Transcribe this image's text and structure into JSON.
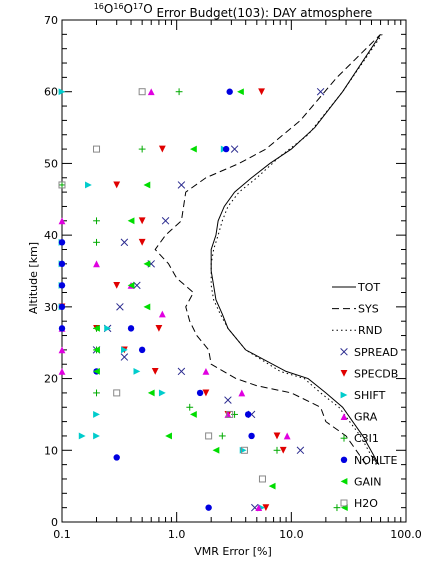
{
  "chart_data": {
    "type": "scatter",
    "title": {
      "iso_a": "16",
      "o_a": "O",
      "iso_b": "16",
      "o_b": "O",
      "iso_c": "17",
      "o_c": "O",
      "rest": " Error Budget(103): DAY atmosphere"
    },
    "xlabel": "VMR Error [%]",
    "ylabel": "Altitude [km]",
    "x_scale": "log",
    "xlim": [
      0.1,
      100
    ],
    "ylim": [
      0,
      70
    ],
    "x_ticks": [
      "0.1",
      "1.0",
      "10.0",
      "100.0"
    ],
    "y_ticks": [
      "0",
      "10",
      "20",
      "30",
      "40",
      "50",
      "60",
      "70"
    ],
    "legend_position": "right",
    "series": [
      {
        "name": "TOT",
        "kind": "line",
        "dash": "",
        "color": "#000000",
        "x": [
          58,
          42,
          28,
          20,
          14,
          9,
          4,
          2.8,
          2.5,
          2.2,
          2.1,
          2.0,
          2.0,
          2.2,
          2.3,
          2.6,
          3.2,
          4.5,
          6.5,
          10,
          16,
          28,
          60
        ],
        "y": [
          8,
          12,
          16,
          18,
          20,
          21,
          24,
          27,
          29,
          31,
          33,
          35,
          38,
          40,
          42,
          44,
          46,
          48,
          50,
          52,
          55,
          60,
          68
        ]
      },
      {
        "name": "SYS",
        "kind": "line",
        "dash": "7,4",
        "color": "#000000",
        "x": [
          45,
          30,
          20,
          18,
          10,
          5,
          3.3,
          2.0,
          1.9,
          1.5,
          1.3,
          1.2,
          1.4,
          1.0,
          0.85,
          0.65,
          0.8,
          1.1,
          1.2,
          1.8,
          3.5,
          6,
          12,
          25,
          60
        ],
        "y": [
          8,
          12,
          14,
          16,
          18,
          19,
          20,
          22,
          24,
          26,
          28,
          30,
          32,
          34,
          36,
          38,
          40,
          42,
          46,
          48,
          50,
          52,
          56,
          62,
          68
        ]
      },
      {
        "name": "RND",
        "kind": "line",
        "dash": "1.5,3",
        "color": "#000000",
        "x": [
          55,
          40,
          26,
          18,
          13,
          8,
          4,
          2.8,
          2.4,
          2.1,
          2.0,
          2.0,
          2.1,
          2.3,
          2.5,
          2.8,
          3.5,
          5,
          8,
          14,
          28,
          62
        ],
        "y": [
          8,
          12,
          16,
          18,
          20,
          21,
          24,
          27,
          29,
          31,
          33,
          36,
          38,
          40,
          42,
          44,
          46,
          48,
          51,
          54,
          60,
          68
        ]
      },
      {
        "name": "SPREAD",
        "kind": "marker",
        "marker": "x",
        "color": "#2b2b8f",
        "x": [
          18,
          3.2,
          1.1,
          0.8,
          0.6,
          0.35,
          0.45,
          0.32,
          0.25,
          0.2,
          0.35,
          1.1,
          2.8,
          4.5,
          12,
          4.8
        ],
        "y": [
          60,
          52,
          47,
          42,
          36,
          39,
          33,
          30,
          27,
          24,
          23,
          21,
          17,
          15,
          10,
          2
        ]
      },
      {
        "name": "SPECDB",
        "kind": "marker",
        "marker": "tri_down",
        "color": "#e00000",
        "x": [
          5.5,
          0.75,
          0.3,
          0.5,
          0.5,
          0.3,
          0.1,
          0.7,
          0.2,
          0.35,
          0.65,
          1.8,
          2.8,
          7.5,
          8.5,
          6
        ],
        "y": [
          60,
          52,
          47,
          42,
          39,
          33,
          30,
          27,
          27,
          24,
          21,
          18,
          15,
          12,
          10,
          2
        ]
      },
      {
        "name": "SHIFT",
        "kind": "marker",
        "marker": "tri_right",
        "color": "#00cccc",
        "x": [
          0.1,
          2.6,
          0.17,
          0.1,
          0.1,
          0.1,
          0.1,
          0.25,
          0.35,
          0.45,
          0.75,
          0.2,
          0.2,
          0.15,
          3.8,
          5.5
        ],
        "y": [
          60,
          52,
          47,
          39,
          36,
          33,
          30,
          27,
          24,
          21,
          18,
          15,
          12,
          12,
          10,
          2
        ]
      },
      {
        "name": "GRA",
        "kind": "marker",
        "marker": "tri_up",
        "color": "#e000e0",
        "x": [
          0.6,
          0.1,
          0.2,
          0.4,
          0.75,
          0.1,
          0.1,
          0.1,
          2.8,
          3.7,
          1.8,
          9.2,
          5.2
        ],
        "y": [
          60,
          42,
          36,
          33,
          29,
          27,
          24,
          21,
          15,
          18,
          21,
          12,
          2
        ]
      },
      {
        "name": "C3I1",
        "kind": "marker",
        "marker": "plus",
        "color": "#00aa00",
        "x": [
          1.05,
          0.5,
          0.1,
          0.2,
          0.2,
          0.2,
          0.2,
          1.3,
          0.2,
          2.5,
          7.5,
          3.2,
          25
        ],
        "y": [
          60,
          52,
          47,
          42,
          39,
          27,
          18,
          16,
          24,
          12,
          10,
          15,
          2
        ]
      },
      {
        "name": "NONLTE",
        "kind": "marker",
        "marker": "circle",
        "color": "#0000e0",
        "x": [
          2.9,
          2.7,
          0.1,
          0.1,
          0.1,
          0.1,
          0.1,
          0.4,
          0.5,
          0.2,
          1.6,
          4.2,
          4.5,
          0.3,
          1.9
        ],
        "y": [
          60,
          52,
          39,
          36,
          33,
          30,
          27,
          27,
          24,
          21,
          18,
          15,
          12,
          9,
          2
        ]
      },
      {
        "name": "GAIN",
        "kind": "marker",
        "marker": "tri_left",
        "color": "#00dd00",
        "x": [
          3.6,
          1.4,
          0.55,
          0.4,
          0.55,
          0.4,
          0.55,
          0.2,
          0.2,
          0.2,
          0.6,
          1.4,
          0.85,
          2.2,
          6.8,
          29
        ],
        "y": [
          60,
          52,
          47,
          42,
          36,
          33,
          30,
          27,
          24,
          21,
          18,
          15,
          12,
          10,
          5,
          2
        ]
      },
      {
        "name": "H2O",
        "kind": "marker",
        "marker": "square",
        "color": "#888888",
        "x": [
          0.5,
          0.2,
          0.1,
          0.3,
          2.9,
          1.9,
          3.9,
          5.6
        ],
        "y": [
          60,
          52,
          47,
          18,
          15,
          12,
          10,
          6
        ]
      }
    ]
  }
}
